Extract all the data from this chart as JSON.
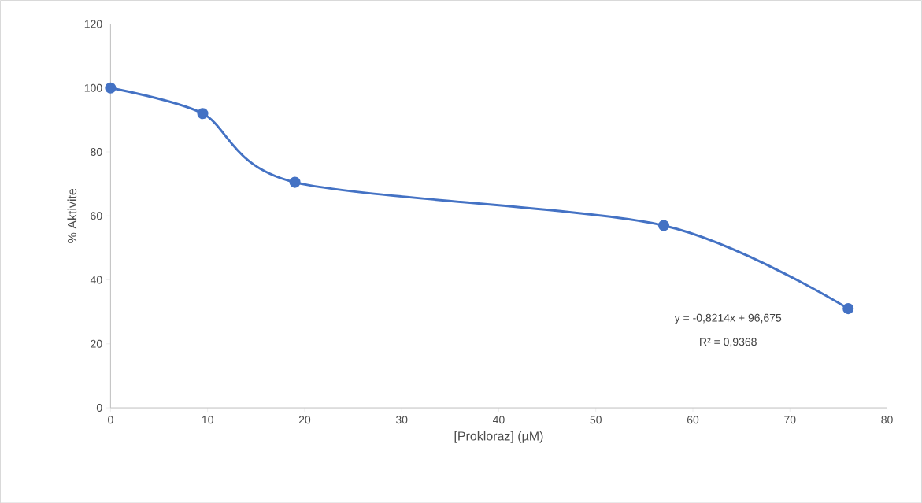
{
  "chart_data": {
    "type": "line",
    "xlabel": "[Prokloraz] (µM)",
    "ylabel": "% Aktivite",
    "x": [
      0,
      9.5,
      19,
      57,
      76
    ],
    "series": [
      {
        "color": "#4472c4",
        "values": [
          100,
          92,
          70.5,
          57,
          31
        ]
      }
    ],
    "marker": "circle",
    "line_style": "solid",
    "xlim": [
      0,
      80
    ],
    "ylim": [
      0,
      120
    ],
    "xticks": [
      0,
      10,
      20,
      30,
      40,
      50,
      60,
      70,
      80
    ],
    "yticks": [
      0,
      20,
      40,
      60,
      80,
      100,
      120
    ],
    "annotations": [
      "y = -0,8214x + 96,675",
      "R² = 0,9368"
    ]
  }
}
